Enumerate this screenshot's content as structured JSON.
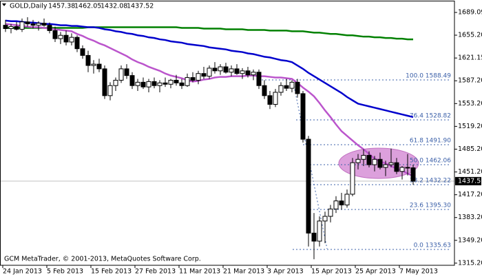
{
  "chart_data": {
    "type": "candlestick",
    "symbol": "GOLD,Daily",
    "footer": "GCM MetaTrader, © 2001-2013, MetaQuotes Software Corp.",
    "ylim": [
      1312,
      1705.6
    ],
    "yticks": [
      {
        "value": 1689.09,
        "label": "1689.09"
      },
      {
        "value": 1655.2,
        "label": "1655.20"
      },
      {
        "value": 1621.15,
        "label": "1621.15"
      },
      {
        "value": 1587.2,
        "label": "1587.20"
      },
      {
        "value": 1553.2,
        "label": "1553.20"
      },
      {
        "value": 1519.2,
        "label": "1519.20"
      },
      {
        "value": 1485.2,
        "label": "1485.20"
      },
      {
        "value": 1451.2,
        "label": "1451.20"
      },
      {
        "value": 1417.2,
        "label": "1417.20"
      },
      {
        "value": 1383.2,
        "label": "1383.20"
      },
      {
        "value": 1349.2,
        "label": "1349.20"
      },
      {
        "value": 1315.2,
        "label": "1315.20"
      }
    ],
    "categories": [
      "24 Jan 2013",
      null,
      null,
      null,
      null,
      null,
      null,
      null,
      "5 Feb 2013",
      null,
      null,
      null,
      null,
      null,
      null,
      null,
      "15 Feb 2013",
      null,
      null,
      null,
      null,
      null,
      null,
      null,
      "27 Feb 2013",
      null,
      null,
      null,
      null,
      null,
      null,
      null,
      "11 Mar 2013",
      null,
      null,
      null,
      null,
      null,
      null,
      null,
      "21 Mar 2013",
      null,
      null,
      null,
      null,
      null,
      null,
      null,
      "3 Apr 2013",
      null,
      null,
      null,
      null,
      null,
      null,
      null,
      "15 Apr 2013",
      null,
      null,
      null,
      null,
      null,
      null,
      null,
      "25 Apr 2013",
      null,
      null,
      null,
      null,
      null,
      null,
      null,
      "7 May 2013",
      null,
      null
    ],
    "ohlc": [
      [
        1670,
        1678,
        1660,
        1665
      ],
      [
        1665,
        1672,
        1658,
        1668
      ],
      [
        1668,
        1675,
        1662,
        1664
      ],
      [
        1664,
        1680,
        1660,
        1675
      ],
      [
        1675,
        1682,
        1668,
        1672
      ],
      [
        1672,
        1678,
        1665,
        1670
      ],
      [
        1670,
        1676,
        1662,
        1673
      ],
      [
        1673,
        1680,
        1668,
        1670
      ],
      [
        1670,
        1674,
        1658,
        1662
      ],
      [
        1662,
        1668,
        1645,
        1650
      ],
      [
        1650,
        1660,
        1642,
        1655
      ],
      [
        1655,
        1662,
        1640,
        1645
      ],
      [
        1645,
        1658,
        1640,
        1652
      ],
      [
        1652,
        1655,
        1630,
        1635
      ],
      [
        1635,
        1640,
        1620,
        1625
      ],
      [
        1625,
        1632,
        1600,
        1610
      ],
      [
        1610,
        1618,
        1598,
        1612
      ],
      [
        1612,
        1620,
        1600,
        1605
      ],
      [
        1605,
        1610,
        1560,
        1565
      ],
      [
        1565,
        1585,
        1558,
        1580
      ],
      [
        1580,
        1592,
        1572,
        1588
      ],
      [
        1588,
        1610,
        1584,
        1605
      ],
      [
        1605,
        1612,
        1590,
        1595
      ],
      [
        1595,
        1600,
        1575,
        1580
      ],
      [
        1580,
        1590,
        1572,
        1585
      ],
      [
        1585,
        1592,
        1575,
        1578
      ],
      [
        1578,
        1590,
        1570,
        1586
      ],
      [
        1586,
        1592,
        1576,
        1580
      ],
      [
        1580,
        1588,
        1570,
        1584
      ],
      [
        1584,
        1592,
        1578,
        1582
      ],
      [
        1582,
        1590,
        1576,
        1588
      ],
      [
        1588,
        1596,
        1580,
        1584
      ],
      [
        1584,
        1590,
        1575,
        1580
      ],
      [
        1580,
        1598,
        1578,
        1592
      ],
      [
        1592,
        1600,
        1585,
        1588
      ],
      [
        1588,
        1602,
        1582,
        1598
      ],
      [
        1598,
        1608,
        1590,
        1594
      ],
      [
        1594,
        1610,
        1590,
        1606
      ],
      [
        1606,
        1615,
        1598,
        1602
      ],
      [
        1602,
        1612,
        1596,
        1608
      ],
      [
        1608,
        1614,
        1598,
        1600
      ],
      [
        1600,
        1610,
        1594,
        1605
      ],
      [
        1605,
        1612,
        1596,
        1598
      ],
      [
        1598,
        1606,
        1590,
        1602
      ],
      [
        1602,
        1608,
        1592,
        1596
      ],
      [
        1596,
        1604,
        1588,
        1600
      ],
      [
        1600,
        1604,
        1575,
        1580
      ],
      [
        1580,
        1588,
        1560,
        1565
      ],
      [
        1565,
        1572,
        1545,
        1552
      ],
      [
        1552,
        1575,
        1548,
        1570
      ],
      [
        1570,
        1585,
        1565,
        1580
      ],
      [
        1580,
        1590,
        1572,
        1576
      ],
      [
        1576,
        1588,
        1570,
        1585
      ],
      [
        1585,
        1590,
        1562,
        1568
      ],
      [
        1568,
        1572,
        1495,
        1500
      ],
      [
        1500,
        1505,
        1340,
        1360
      ],
      [
        1360,
        1390,
        1321,
        1348
      ],
      [
        1348,
        1385,
        1340,
        1378
      ],
      [
        1378,
        1392,
        1345,
        1385
      ],
      [
        1385,
        1402,
        1376,
        1396
      ],
      [
        1396,
        1415,
        1390,
        1408
      ],
      [
        1408,
        1420,
        1395,
        1402
      ],
      [
        1402,
        1425,
        1398,
        1418
      ],
      [
        1418,
        1472,
        1415,
        1465
      ],
      [
        1465,
        1478,
        1455,
        1470
      ],
      [
        1470,
        1485,
        1460,
        1476
      ],
      [
        1476,
        1482,
        1458,
        1462
      ],
      [
        1462,
        1475,
        1452,
        1470
      ],
      [
        1470,
        1480,
        1455,
        1458
      ],
      [
        1458,
        1468,
        1445,
        1462
      ],
      [
        1462,
        1486,
        1458,
        1465
      ],
      [
        1465,
        1472,
        1448,
        1452
      ],
      [
        1452,
        1460,
        1440,
        1458
      ],
      [
        1458,
        1478,
        1446,
        1457
      ],
      [
        1457.38,
        1462.05,
        1432.08,
        1437.52
      ]
    ],
    "series": [
      {
        "color": "#008000",
        "values": [
          1666,
          1666,
          1666,
          1666,
          1666,
          1666,
          1666,
          1666,
          1666,
          1666,
          1666,
          1666,
          1666,
          1666,
          1666,
          1667,
          1667,
          1667,
          1667,
          1667,
          1667,
          1667,
          1667,
          1667,
          1667,
          1667,
          1667,
          1667,
          1667,
          1667,
          1667,
          1667,
          1666,
          1666,
          1666,
          1666,
          1665,
          1665,
          1665,
          1665,
          1664,
          1664,
          1664,
          1664,
          1663,
          1663,
          1663,
          1663,
          1662,
          1662,
          1662,
          1662,
          1661,
          1661,
          1661,
          1660,
          1659,
          1659,
          1658,
          1657,
          1657,
          1656,
          1655,
          1655,
          1654,
          1653,
          1653,
          1652,
          1652,
          1651,
          1651,
          1650,
          1650,
          1649,
          1649
        ]
      },
      {
        "color": "#0000cc",
        "values": [
          1677,
          1676,
          1676,
          1675,
          1674,
          1674,
          1673,
          1672,
          1672,
          1671,
          1670,
          1670,
          1669,
          1669,
          1668,
          1667,
          1667,
          1666,
          1664,
          1663,
          1661,
          1660,
          1658,
          1657,
          1655,
          1654,
          1652,
          1651,
          1649,
          1648,
          1646,
          1645,
          1644,
          1642,
          1641,
          1640,
          1639,
          1637,
          1636,
          1635,
          1634,
          1632,
          1631,
          1630,
          1628,
          1627,
          1625,
          1623,
          1622,
          1620,
          1618,
          1617,
          1615,
          1610,
          1605,
          1599,
          1594,
          1589,
          1584,
          1579,
          1574,
          1569,
          1563,
          1558,
          1553,
          1551,
          1549,
          1547,
          1545,
          1543,
          1541,
          1539,
          1537,
          1535,
          1533
        ]
      },
      {
        "color": "#bb55cc",
        "values": [
          1672,
          1671,
          1670,
          1669,
          1668,
          1667,
          1667,
          1666,
          1665,
          1664,
          1663,
          1662,
          1661,
          1657,
          1654,
          1650,
          1647,
          1643,
          1640,
          1636,
          1632,
          1628,
          1624,
          1619,
          1615,
          1612,
          1608,
          1605,
          1602,
          1598,
          1595,
          1593,
          1591,
          1588,
          1586,
          1587,
          1589,
          1590,
          1592,
          1593,
          1593,
          1594,
          1594,
          1594,
          1595,
          1595,
          1594,
          1594,
          1593,
          1592,
          1592,
          1591,
          1590,
          1584,
          1577,
          1571,
          1564,
          1554,
          1543,
          1533,
          1522,
          1512,
          1505,
          1498,
          1491,
          1485,
          1478,
          1471,
          1467,
          1464,
          1460,
          1456,
          1453,
          1449,
          1445
        ]
      }
    ],
    "fib_levels": [
      {
        "value": 1588.49,
        "label": "100.0 1588.49"
      },
      {
        "value": 1528.82,
        "label": "76.4 1528.82"
      },
      {
        "value": 1491.9,
        "label": "61.8 1491.90"
      },
      {
        "value": 1462.06,
        "label": "50.0 1462.06"
      },
      {
        "value": 1432.22,
        "label": "38.2 1432.22"
      },
      {
        "value": 1395.3,
        "label": "23.6 1395.30"
      },
      {
        "value": 1335.63,
        "label": "0.0 1335.63"
      }
    ]
  }
}
